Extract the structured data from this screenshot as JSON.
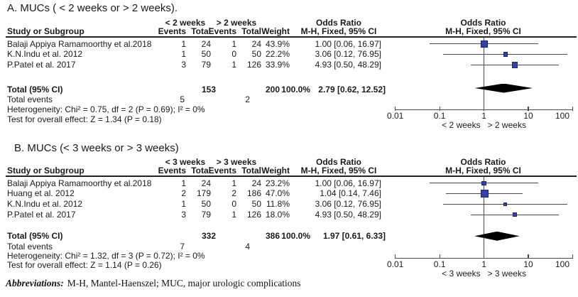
{
  "colors": {
    "square_fill": "#3540ab",
    "square_border": "#1b2272",
    "ci_line": "#4a4a4a",
    "axis": "#4a4a4a",
    "diamond": "#000000",
    "rule": "#222222"
  },
  "footer": {
    "label": "Abbreviations:",
    "text": "M-H, Mantel-Haenszel; MUC, major urologic complications"
  },
  "chart_data": [
    {
      "type": "forest",
      "panel_label": "A. MUCs ( < 2 weeks or > 2 weeks).",
      "group1": "< 2 weeks",
      "group2": "> 2 weeks",
      "or_title": "Odds Ratio",
      "or_subtitle": "M-H, Fixed, 95% CI",
      "columns": {
        "study": "Study or Subgroup",
        "events": "Events",
        "total": "Total",
        "weight": "Weight",
        "mh_ci": "M-H, Fixed, 95% CI"
      },
      "studies": [
        {
          "name": "Balaji Appiya Ramamoorthy et al.2018",
          "events1": "1",
          "total1": "24",
          "events2": "1",
          "total2": "24",
          "weight": "43.9%",
          "weight_pct": 43.9,
          "ci_text": "1.00 [0.06, 16.97]",
          "or": 1.0,
          "low": 0.06,
          "high": 16.97
        },
        {
          "name": "K.N.Indu et al. 2012",
          "events1": "1",
          "total1": "50",
          "events2": "0",
          "total2": "50",
          "weight": "22.2%",
          "weight_pct": 22.2,
          "ci_text": "3.06 [0.12, 76.95]",
          "or": 3.06,
          "low": 0.12,
          "high": 76.95
        },
        {
          "name": "P.Patel et al. 2017",
          "events1": "3",
          "total1": "79",
          "events2": "1",
          "total2": "126",
          "weight": "33.9%",
          "weight_pct": 33.9,
          "ci_text": "4.93 [0.50, 48.29]",
          "or": 4.93,
          "low": 0.5,
          "high": 48.29
        }
      ],
      "total": {
        "label": "Total (95% CI)",
        "total1": "153",
        "total2": "200",
        "weight": "100.0%",
        "ci_text": "2.79 [0.62, 12.52]",
        "or": 2.79,
        "low": 0.62,
        "high": 12.52
      },
      "total_events": {
        "label": "Total events",
        "events1": "5",
        "events2": "2"
      },
      "heterogeneity": "Heterogeneity: Chi² = 0.75, df = 2 (P = 0.69); I² = 0%",
      "overall_effect": "Test for overall effect: Z = 1.34 (P = 0.18)",
      "x_axis": {
        "scale": "log",
        "range": [
          0.01,
          100
        ],
        "ticks": [
          "0.01",
          "0.1",
          "1",
          "10",
          "100"
        ],
        "left_label": "< 2 weeks",
        "right_label": "> 2 weeks"
      }
    },
    {
      "type": "forest",
      "panel_label": "B. MUCs (< 3 weeks or > 3 weeks)",
      "group1": "< 3 weeks",
      "group2": "> 3 weeks",
      "or_title": "Odds Ratio",
      "or_subtitle": "M-H, Fixed, 95% CI",
      "columns": {
        "study": "Study or Subgroup",
        "events": "Events",
        "total": "Total",
        "weight": "Weight",
        "mh_ci": "M-H, Fixed, 95% CI"
      },
      "studies": [
        {
          "name": "Balaji Appiya Ramamoorthy et al.2018",
          "events1": "1",
          "total1": "24",
          "events2": "1",
          "total2": "24",
          "weight": "23.2%",
          "weight_pct": 23.2,
          "ci_text": "1.00 [0.06, 16.97]",
          "or": 1.0,
          "low": 0.06,
          "high": 16.97
        },
        {
          "name": "Huang et al. 2012",
          "events1": "2",
          "total1": "179",
          "events2": "2",
          "total2": "186",
          "weight": "47.0%",
          "weight_pct": 47.0,
          "ci_text": "1.04 [0.14, 7.46]",
          "or": 1.04,
          "low": 0.14,
          "high": 7.46
        },
        {
          "name": "K.N.Indu et al. 2012",
          "events1": "1",
          "total1": "50",
          "events2": "0",
          "total2": "50",
          "weight": "11.8%",
          "weight_pct": 11.8,
          "ci_text": "3.06 [0.12, 76.95]",
          "or": 3.06,
          "low": 0.12,
          "high": 76.95
        },
        {
          "name": "P.Patel et al. 2017",
          "events1": "3",
          "total1": "79",
          "events2": "1",
          "total2": "126",
          "weight": "18.0%",
          "weight_pct": 18.0,
          "ci_text": "4.93 [0.50, 48.29]",
          "or": 4.93,
          "low": 0.5,
          "high": 48.29
        }
      ],
      "total": {
        "label": "Total (95% CI)",
        "total1": "332",
        "total2": "386",
        "weight": "100.0%",
        "ci_text": "1.97 [0.61, 6.33]",
        "or": 1.97,
        "low": 0.61,
        "high": 6.33
      },
      "total_events": {
        "label": "Total events",
        "events1": "7",
        "events2": "4"
      },
      "heterogeneity": "Heterogeneity: Chi² = 1.32, df = 3 (P = 0.72); I² = 0%",
      "overall_effect": "Test for overall effect: Z = 1.14 (P = 0.26)",
      "x_axis": {
        "scale": "log",
        "range": [
          0.01,
          100
        ],
        "ticks": [
          "0.01",
          "0.1",
          "1",
          "10",
          "100"
        ],
        "left_label": "< 3 weeks",
        "right_label": "> 3 weeks"
      }
    }
  ]
}
